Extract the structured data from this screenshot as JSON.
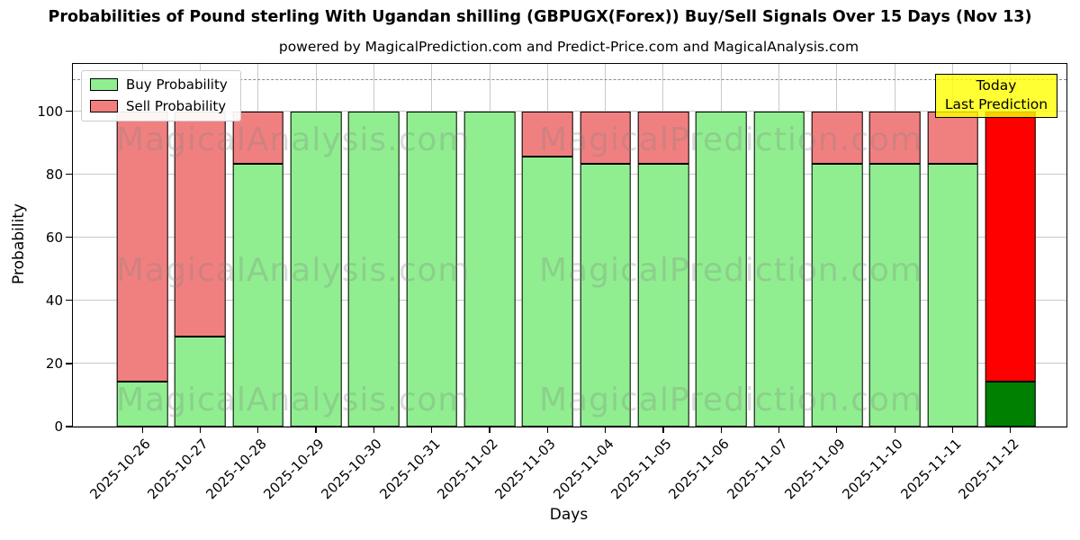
{
  "title": "Probabilities of Pound sterling With Ugandan shilling (GBPUGX(Forex)) Buy/Sell Signals Over 15 Days (Nov 13)",
  "subtitle": "powered by MagicalPrediction.com and Predict-Price.com and MagicalAnalysis.com",
  "legend": {
    "items": [
      {
        "label": "Buy Probability"
      },
      {
        "label": "Sell Probability"
      }
    ]
  },
  "annotation": {
    "line1": "Today",
    "line2": "Last Prediction"
  },
  "axes": {
    "xlabel": "Days",
    "ylabel": "Probability",
    "yticks": [
      0,
      20,
      40,
      60,
      80,
      100
    ],
    "ylim": [
      0,
      115
    ],
    "dashed_line_y": 110,
    "grid": true
  },
  "watermarks": [
    "MagicalAnalysis.com",
    "MagicalPrediction.com"
  ],
  "colors": {
    "buy": "#90EE90",
    "sell": "#F08080",
    "today_buy": "#008000",
    "today_sell": "#FF0000",
    "annotation_bg": "#FFFF00",
    "grid": "#C9C9C9",
    "dashed_line": "#8A8A8A",
    "watermark": "#808080"
  },
  "chart_data": {
    "type": "bar",
    "stacked": true,
    "title": "Probabilities of Pound sterling With Ugandan shilling (GBPUGX(Forex)) Buy/Sell Signals Over 15 Days (Nov 13)",
    "xlabel": "Days",
    "ylabel": "Probability",
    "ylim": [
      0,
      115
    ],
    "legend_position": "upper left",
    "grid": true,
    "categories": [
      "2025-10-26",
      "2025-10-27",
      "2025-10-28",
      "2025-10-29",
      "2025-10-30",
      "2025-10-31",
      "2025-11-02",
      "2025-11-03",
      "2025-11-04",
      "2025-11-05",
      "2025-11-06",
      "2025-11-07",
      "2025-11-09",
      "2025-11-10",
      "2025-11-11",
      "2025-11-12"
    ],
    "series": [
      {
        "name": "Buy Probability",
        "color": "#90EE90",
        "values": [
          14.29,
          28.57,
          83.33,
          100,
          100,
          100,
          100,
          85.71,
          83.33,
          83.33,
          100,
          100,
          83.33,
          83.33,
          83.33,
          14.29
        ]
      },
      {
        "name": "Sell Probability",
        "color": "#F08080",
        "values": [
          85.71,
          71.43,
          16.67,
          0,
          0,
          0,
          0,
          14.29,
          16.67,
          16.67,
          0,
          0,
          16.67,
          16.67,
          16.67,
          85.71
        ]
      }
    ],
    "today_index": 15,
    "today_colors": {
      "buy": "#008000",
      "sell": "#FF0000"
    }
  }
}
